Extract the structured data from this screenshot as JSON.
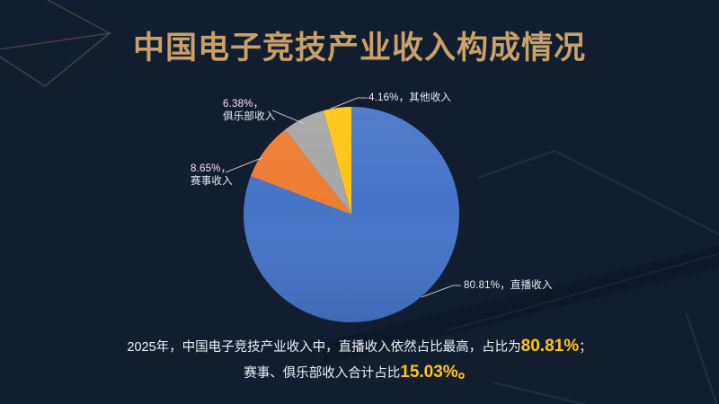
{
  "page": {
    "background": "#131D30",
    "title": "中国电子竞技产业收入构成情况",
    "title_color": "#C7A167"
  },
  "chart_data": {
    "type": "pie",
    "title": "中国电子竞技产业收入构成情况",
    "start_angle_deg": 0,
    "direction": "clockwise",
    "legend": "none",
    "data_label_format": "value%, category",
    "slices": [
      {
        "name": "live",
        "label": "直播收入",
        "value": 80.81,
        "color": "#4574C8"
      },
      {
        "name": "event",
        "label": "赛事收入",
        "value": 8.65,
        "color": "#ED7D31"
      },
      {
        "name": "club",
        "label": "俱乐部收入",
        "value": 6.38,
        "color": "#A6A6A6"
      },
      {
        "name": "other",
        "label": "其他收入",
        "value": 4.16,
        "color": "#FFC512"
      }
    ]
  },
  "callouts": {
    "other": {
      "text": "4.16%，其他收入"
    },
    "club": {
      "line1": "6.38%，",
      "line2": "俱乐部收入"
    },
    "event": {
      "line1": "8.65%，",
      "line2": "赛事收入"
    },
    "live": {
      "text": "80.81%，直播收入"
    }
  },
  "summary": {
    "line1_text": "2025年，中国电子竞技产业收入中，直播收入依然占比最高，占比为",
    "line1_value": "80.81%",
    "line1_end": "；",
    "line2_text": "赛事、俱乐部收入合计占比",
    "line2_value": "15.03%。",
    "highlight_color": "#FFC512"
  }
}
